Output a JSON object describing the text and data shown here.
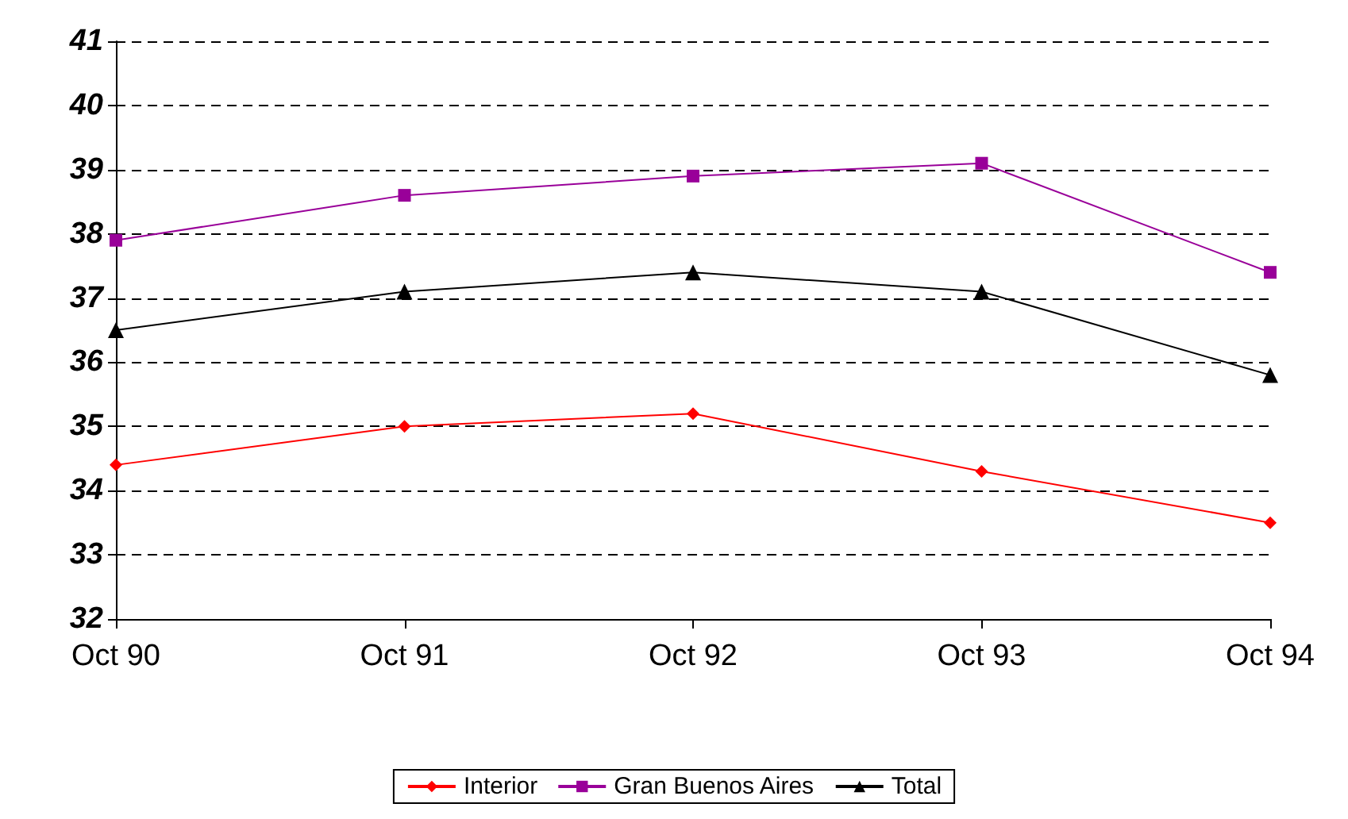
{
  "chart_data": {
    "type": "line",
    "categories": [
      "Oct 90",
      "Oct 91",
      "Oct 92",
      "Oct 93",
      "Oct 94"
    ],
    "series": [
      {
        "name": "Interior",
        "color": "#ff0000",
        "marker": "diamond",
        "values": [
          34.4,
          35.0,
          35.2,
          34.3,
          33.5
        ]
      },
      {
        "name": "Gran Buenos Aires",
        "color": "#990099",
        "marker": "square",
        "values": [
          37.9,
          38.6,
          38.9,
          39.1,
          37.4
        ]
      },
      {
        "name": "Total",
        "color": "#000000",
        "marker": "triangle",
        "values": [
          36.5,
          37.1,
          37.4,
          37.1,
          35.8
        ]
      }
    ],
    "ylim": [
      32,
      41
    ],
    "yticks": [
      32,
      33,
      34,
      35,
      36,
      37,
      38,
      39,
      40,
      41
    ],
    "grid": "y",
    "legend": "bottom"
  }
}
